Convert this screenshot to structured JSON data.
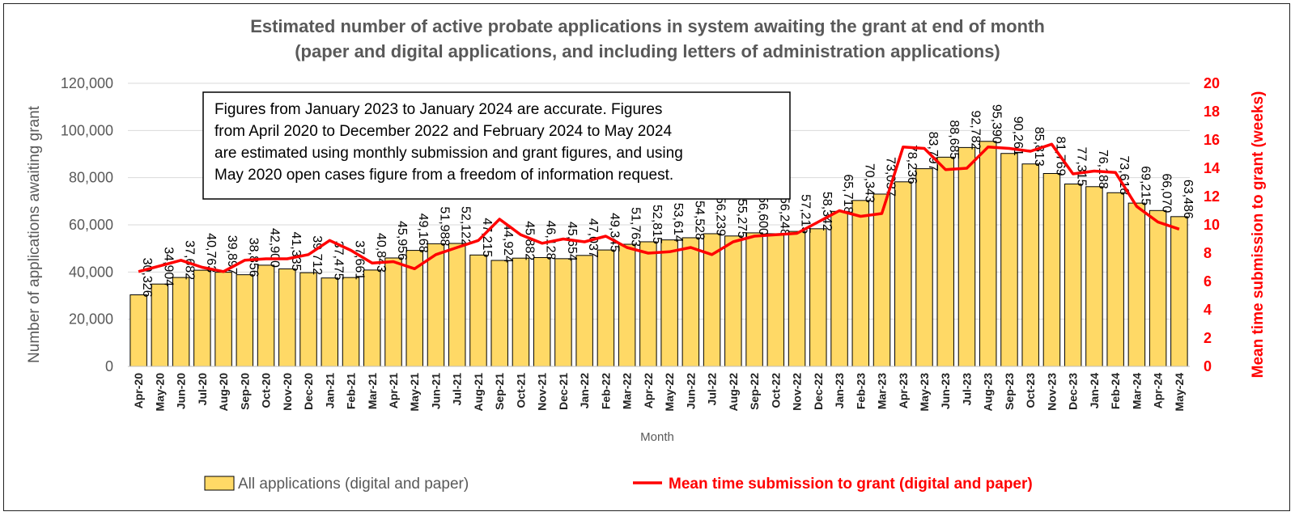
{
  "chart_data": {
    "type": "bar+line",
    "title": [
      "Estimated number of active probate applications in system awaiting the grant at end of month",
      "(paper and digital applications, and including letters of administration applications)"
    ],
    "xlabel": "Month",
    "ylabel": "Number of applications awaiting grant",
    "y2label": "Mean time submission to grant (weeks)",
    "ylim": [
      0,
      120000
    ],
    "y2lim": [
      0,
      20
    ],
    "yticks": [
      "0",
      "20,000",
      "40,000",
      "60,000",
      "80,000",
      "100,000",
      "120,000"
    ],
    "y2ticks": [
      "0",
      "2",
      "4",
      "6",
      "8",
      "10",
      "12",
      "14",
      "16",
      "18",
      "20"
    ],
    "grid": true,
    "legend_position": "bottom",
    "categories": [
      "Apr-20",
      "May-20",
      "Jun-20",
      "Jul-20",
      "Aug-20",
      "Sep-20",
      "Oct-20",
      "Nov-20",
      "Dec-20",
      "Jan-21",
      "Feb-21",
      "Mar-21",
      "Apr-21",
      "May-21",
      "Jun-21",
      "Jul-21",
      "Aug-21",
      "Sep-21",
      "Oct-21",
      "Nov-21",
      "Dec-21",
      "Jan-22",
      "Feb-22",
      "Mar-22",
      "Apr-22",
      "May-22",
      "Jun-22",
      "Jul-22",
      "Aug-22",
      "Sep-22",
      "Oct-22",
      "Nov-22",
      "Dec-22",
      "Jan-23",
      "Feb-23",
      "Mar-23",
      "Apr-23",
      "May-23",
      "Jun-23",
      "Jul-23",
      "Aug-23",
      "Sep-23",
      "Oct-23",
      "Nov-23",
      "Dec-23",
      "Jan-24",
      "Feb-24",
      "Mar-24",
      "Apr-24",
      "May-24"
    ],
    "series": [
      {
        "name": "All applications (digital and paper)",
        "type": "bar",
        "axis": "left",
        "color": "#ffd966",
        "values": [
          30326,
          34904,
          37682,
          40763,
          39897,
          38856,
          42900,
          41335,
          39712,
          37475,
          37661,
          40843,
          45956,
          49168,
          51988,
          52122,
          47215,
          44924,
          45882,
          46128,
          45654,
          47037,
          49345,
          51763,
          52815,
          53614,
          54528,
          56239,
          55275,
          56600,
          56248,
          57215,
          58342,
          65718,
          70343,
          73037,
          78236,
          83797,
          88685,
          92782,
          95390,
          90261,
          85813,
          81769,
          77315,
          76188,
          73618,
          69215,
          66070,
          63486
        ],
        "labels": [
          "30,326",
          "34,904",
          "37,682",
          "40,763",
          "39,897",
          "38,856",
          "42,900",
          "41,335",
          "39,712",
          "37,475",
          "37,661",
          "40,843",
          "45,956",
          "49,168",
          "51,988",
          "52,122",
          "47,215",
          "44,924",
          "45,882",
          "46,128",
          "45,654",
          "47,037",
          "49,345",
          "51,763",
          "52,815",
          "53,614",
          "54,528",
          "56,239",
          "55,275",
          "56,600",
          "56,248",
          "57,215",
          "58,342",
          "65,718",
          "70,343",
          "73,037",
          "78,236",
          "83,797",
          "88,685",
          "92,782",
          "95,390",
          "90,261",
          "85,813",
          "81,769",
          "77,315",
          "76,188",
          "73,618",
          "69,215",
          "66,070",
          "63,486"
        ]
      },
      {
        "name": "Mean time submission to grant (digital and paper)",
        "type": "line",
        "axis": "right",
        "color": "#ff0000",
        "values": [
          6.7,
          7.1,
          7.5,
          7.0,
          6.7,
          7.5,
          7.6,
          7.6,
          7.9,
          8.9,
          8.2,
          7.3,
          7.4,
          6.9,
          7.9,
          8.4,
          8.9,
          10.4,
          9.3,
          8.7,
          9.0,
          8.8,
          9.2,
          8.4,
          8.0,
          8.1,
          8.4,
          7.9,
          8.8,
          9.2,
          9.3,
          9.4,
          10.2,
          11.0,
          10.6,
          10.8,
          15.5,
          15.4,
          13.9,
          14.0,
          15.5,
          15.4,
          15.2,
          15.7,
          13.6,
          13.8,
          13.7,
          11.3,
          10.2,
          9.7
        ]
      }
    ],
    "annotation": [
      "Figures from January 2023 to January 2024 are accurate. Figures",
      "from April 2020 to December 2022 and February 2024 to May 2024",
      "are estimated using monthly submission and grant figures, and using",
      "May 2020 open cases figure from a freedom of information request."
    ]
  }
}
